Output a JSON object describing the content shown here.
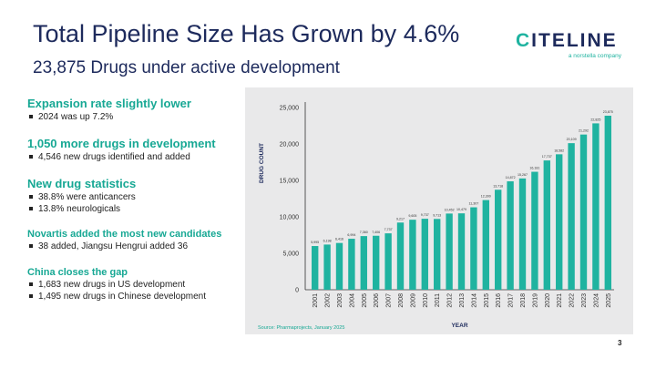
{
  "slide": {
    "title": "Total Pipeline Size Has Grown by 4.6%",
    "subtitle": "23,875 Drugs under active development",
    "page_number": "3",
    "source": "Source: Pharmaprojects, January 2025"
  },
  "logo": {
    "first_letter": "C",
    "rest": "ITELINE",
    "tagline": "a norstella company"
  },
  "sections": [
    {
      "heading": "Expansion rate slightly lower",
      "items": [
        "2024 was up 7.2%"
      ]
    },
    {
      "heading": "1,050 more drugs in development",
      "items": [
        "4,546 new drugs identified and added"
      ]
    },
    {
      "heading": "New drug statistics",
      "items": [
        "38.8% were anticancers",
        "13.8% neurologicals"
      ]
    },
    {
      "heading": "Novartis added the most new candidates",
      "items": [
        "38 added, Jiangsu Hengrui added 36"
      ]
    },
    {
      "heading": "China closes the gap",
      "items": [
        "1,683 new drugs in US development",
        "1,495 new drugs in Chinese development"
      ]
    }
  ],
  "colors": {
    "accent": "#17a894",
    "bar": "#1fb3a0",
    "navy": "#1d2a5c",
    "panel": "#e9e9ea"
  },
  "chart_data": {
    "type": "bar",
    "xlabel": "YEAR",
    "ylabel": "DRUG COUNT",
    "ylim": [
      0,
      25000
    ],
    "yticks": [
      "0",
      "5,000",
      "10,000",
      "15,000",
      "20,000",
      "25,000"
    ],
    "ytick_values": [
      0,
      5000,
      10000,
      15000,
      20000,
      25000
    ],
    "grid": false,
    "categories": [
      "2001",
      "2002",
      "2003",
      "2004",
      "2005",
      "2006",
      "2007",
      "2008",
      "2009",
      "2010",
      "2011",
      "2012",
      "2013",
      "2014",
      "2015",
      "2016",
      "2017",
      "2018",
      "2019",
      "2020",
      "2021",
      "2022",
      "2023",
      "2024",
      "2025"
    ],
    "values": [
      5995,
      6198,
      6416,
      6994,
      7360,
      7406,
      7737,
      9217,
      9605,
      9737,
      9713,
      10452,
      10479,
      11307,
      12300,
      13718,
      14872,
      15267,
      16181,
      17737,
      18582,
      20109,
      21292,
      22825,
      23875
    ],
    "data_labels": [
      "5,995",
      "6,198",
      "6,416",
      "6,994",
      "7,360",
      "7,406",
      "7,737",
      "9,217",
      "9,605",
      "9,737",
      "9,713",
      "10,452",
      "10,479",
      "11,307",
      "12,300",
      "13,718",
      "14,872",
      "15,267",
      "16,181",
      "17,737",
      "18,582",
      "20,109",
      "21,292",
      "22,825",
      "23,875"
    ]
  }
}
